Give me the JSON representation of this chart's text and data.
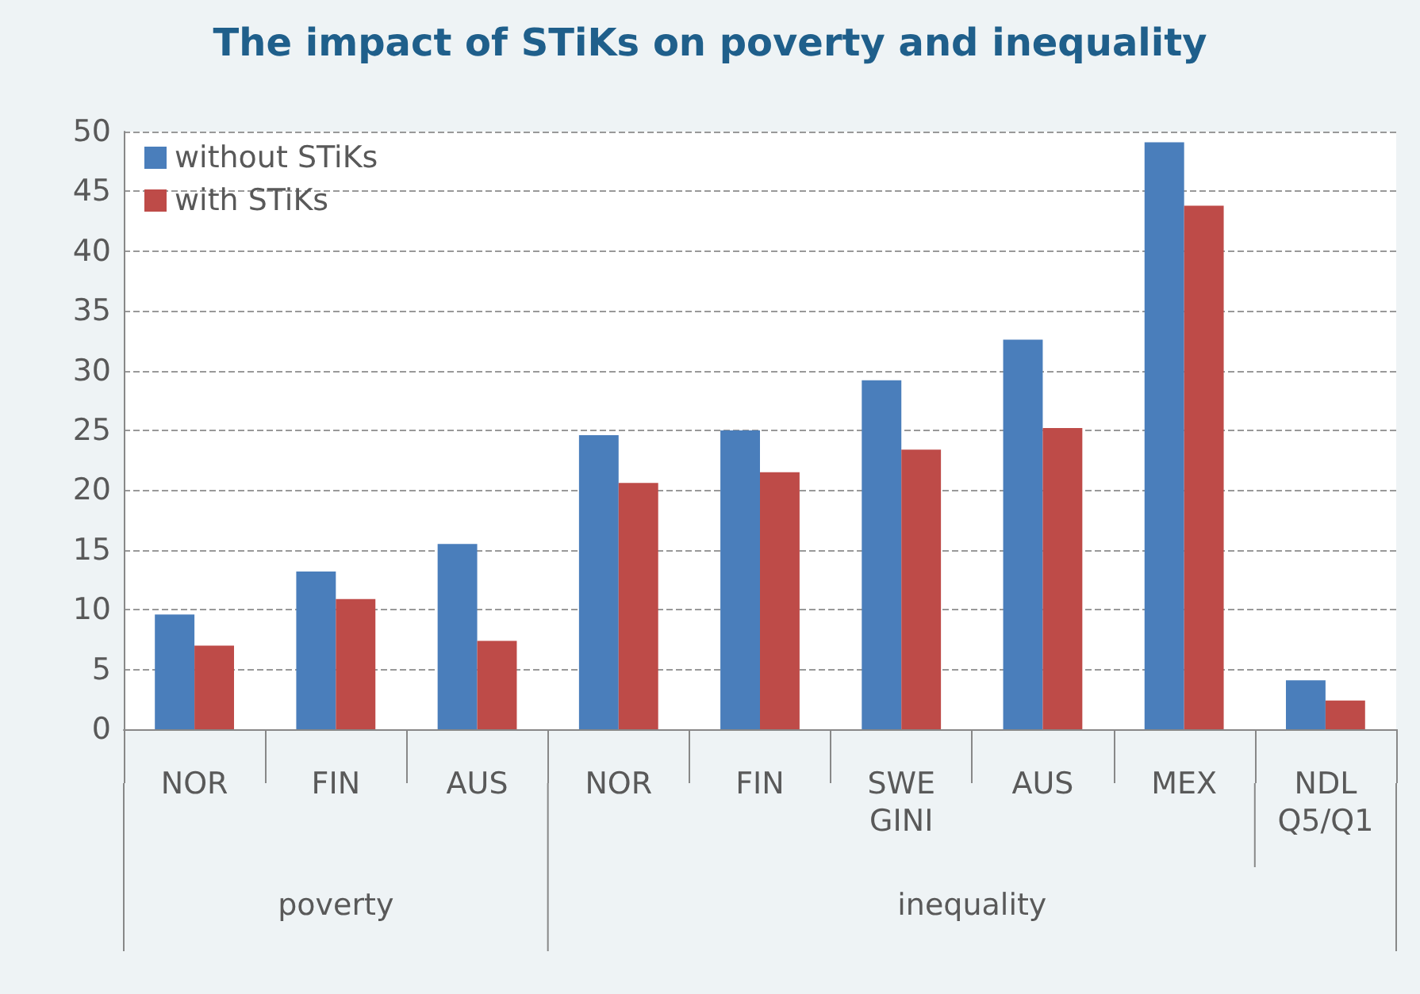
{
  "chart_data": {
    "type": "bar",
    "title": "The impact of STiKs on poverty and inequality",
    "categories": [
      "NOR",
      "FIN",
      "AUS",
      "NOR",
      "FIN",
      "SWE",
      "AUS",
      "MEX",
      "NDL"
    ],
    "series": [
      {
        "name": "without STiKs",
        "color": "#4a7ebb",
        "values": [
          9.6,
          13.2,
          15.5,
          24.6,
          25.0,
          29.2,
          32.6,
          49.1,
          4.1
        ]
      },
      {
        "name": "with STiKs",
        "color": "#be4b48",
        "values": [
          7.0,
          10.9,
          7.4,
          20.6,
          21.5,
          23.4,
          25.2,
          43.8,
          2.4
        ]
      }
    ],
    "annotations": [
      "GINI",
      "Q5/Q1",
      "poverty",
      "inequality"
    ],
    "ylim": [
      0,
      50
    ],
    "yticks": [
      0,
      5,
      10,
      15,
      20,
      25,
      30,
      35,
      40,
      45,
      50
    ],
    "grid": "y",
    "legend": "top left"
  }
}
